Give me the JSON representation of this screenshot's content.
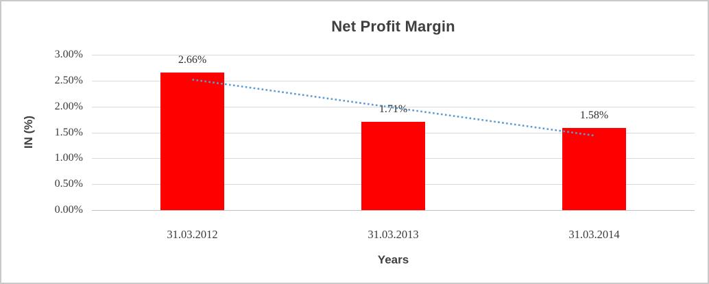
{
  "chart_data": {
    "type": "bar",
    "title": "Net Profit Margin",
    "categories": [
      "31.03.2012",
      "31.03.2013",
      "31.03.2014"
    ],
    "values": [
      2.66,
      1.71,
      1.58
    ],
    "data_labels": [
      "2.66%",
      "1.71%",
      "1.58%"
    ],
    "xlabel": "Years",
    "ylabel": "IN (%)",
    "ylim": [
      0,
      3.0
    ],
    "ytick_step": 0.5,
    "ytick_labels": [
      "0.00%",
      "0.50%",
      "1.00%",
      "1.50%",
      "2.00%",
      "2.50%",
      "3.00%"
    ],
    "grid": true,
    "legend": "none",
    "bar_color": "#ff0000",
    "gridline_color": "#d9d9d9",
    "axis_line_color": "#bfbfbf",
    "trendline": {
      "type": "linear",
      "style": "dotted",
      "color": "#5b9bd5",
      "start_value": 2.52,
      "end_value": 1.44
    }
  }
}
